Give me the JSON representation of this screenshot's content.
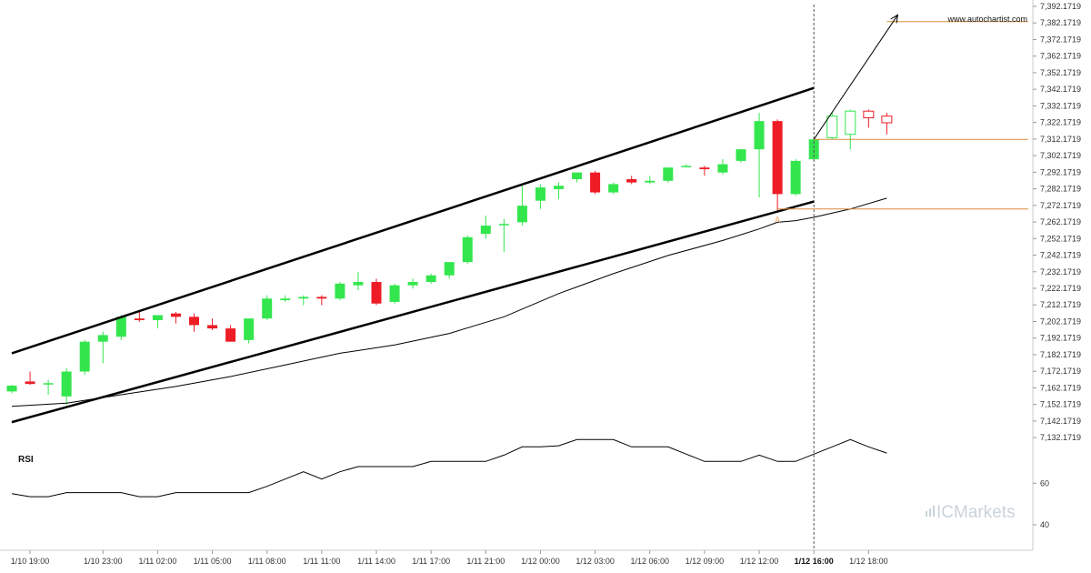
{
  "colors": {
    "bull": "#33e64d",
    "bear": "#ee1c25",
    "channel": "#000000",
    "ma": "#000000",
    "level": "#d98b3a",
    "marker": "#f4a460",
    "grid": "#cccccc",
    "brand": "#c9d3d9"
  },
  "watermark": {
    "site": "www.autochartist.com",
    "brand_prefix": "IC",
    "brand_name": "Markets"
  },
  "rsi_panel": {
    "title": "RSI"
  },
  "pattern_marker": {
    "label": "A"
  },
  "chart_data": {
    "type": "candlestick",
    "instrument_panel": {
      "ylim": [
        7127.1719,
        7392.1719
      ],
      "y_ticks": [
        "7,392.1719",
        "7,382.1719",
        "7,372.1719",
        "7,362.1719",
        "7,352.1719",
        "7,342.1719",
        "7,332.1719",
        "7,322.1719",
        "7,312.1719",
        "7,302.1719",
        "7,292.1719",
        "7,282.1719",
        "7,272.1719",
        "7,262.1719",
        "7,252.1719",
        "7,242.1719",
        "7,232.1719",
        "7,222.1719",
        "7,212.1719",
        "7,202.1719",
        "7,192.1719",
        "7,182.1719",
        "7,172.1719",
        "7,162.1719",
        "7,152.1719",
        "7,142.1719",
        "7,132.1719"
      ]
    },
    "x_ticks": [
      {
        "i": 1,
        "label": "1/10 19:00"
      },
      {
        "i": 5,
        "label": "1/10 23:00"
      },
      {
        "i": 8,
        "label": "1/11 02:00"
      },
      {
        "i": 11,
        "label": "1/11 05:00"
      },
      {
        "i": 14,
        "label": "1/11 08:00"
      },
      {
        "i": 17,
        "label": "1/11 11:00"
      },
      {
        "i": 20,
        "label": "1/11 14:00"
      },
      {
        "i": 23,
        "label": "1/11 17:00"
      },
      {
        "i": 26,
        "label": "1/11 21:00"
      },
      {
        "i": 29,
        "label": "1/12 00:00"
      },
      {
        "i": 32,
        "label": "1/12 03:00"
      },
      {
        "i": 35,
        "label": "1/12 06:00"
      },
      {
        "i": 38,
        "label": "1/12 09:00"
      },
      {
        "i": 41,
        "label": "1/12 12:00"
      },
      {
        "i": 44,
        "label": "1/12 16:00",
        "bold": true
      },
      {
        "i": 47,
        "label": "1/12 18:00"
      }
    ],
    "candles": [
      {
        "o": 7160.0,
        "h": 7164.0,
        "l": 7159.0,
        "c": 7163.5
      },
      {
        "o": 7166.0,
        "h": 7172.0,
        "l": 7164.0,
        "c": 7164.5
      },
      {
        "o": 7165.0,
        "h": 7167.0,
        "l": 7158.0,
        "c": 7165.0
      },
      {
        "o": 7157.0,
        "h": 7174.0,
        "l": 7152.0,
        "c": 7172.0
      },
      {
        "o": 7172.0,
        "h": 7191.0,
        "l": 7170.0,
        "c": 7190.0
      },
      {
        "o": 7190.0,
        "h": 7196.0,
        "l": 7177.0,
        "c": 7194.0
      },
      {
        "o": 7193.0,
        "h": 7206.0,
        "l": 7191.0,
        "c": 7205.0
      },
      {
        "o": 7204.0,
        "h": 7208.0,
        "l": 7202.0,
        "c": 7203.0
      },
      {
        "o": 7203.0,
        "h": 7206.0,
        "l": 7198.0,
        "c": 7206.0
      },
      {
        "o": 7207.0,
        "h": 7208.0,
        "l": 7201.0,
        "c": 7205.0
      },
      {
        "o": 7205.0,
        "h": 7207.0,
        "l": 7196.0,
        "c": 7200.0
      },
      {
        "o": 7200.0,
        "h": 7204.0,
        "l": 7197.0,
        "c": 7198.0
      },
      {
        "o": 7198.0,
        "h": 7200.0,
        "l": 7190.0,
        "c": 7190.0
      },
      {
        "o": 7191.0,
        "h": 7204.0,
        "l": 7189.0,
        "c": 7204.0
      },
      {
        "o": 7204.0,
        "h": 7218.0,
        "l": 7203.0,
        "c": 7216.0
      },
      {
        "o": 7215.0,
        "h": 7218.0,
        "l": 7214.0,
        "c": 7216.0
      },
      {
        "o": 7216.0,
        "h": 7218.0,
        "l": 7212.0,
        "c": 7217.0
      },
      {
        "o": 7217.0,
        "h": 7218.0,
        "l": 7212.0,
        "c": 7216.0
      },
      {
        "o": 7216.0,
        "h": 7226.0,
        "l": 7215.0,
        "c": 7225.0
      },
      {
        "o": 7224.0,
        "h": 7232.0,
        "l": 7221.0,
        "c": 7226.0
      },
      {
        "o": 7226.0,
        "h": 7228.0,
        "l": 7212.0,
        "c": 7213.0
      },
      {
        "o": 7214.0,
        "h": 7225.0,
        "l": 7213.0,
        "c": 7224.0
      },
      {
        "o": 7224.0,
        "h": 7228.0,
        "l": 7222.0,
        "c": 7226.0
      },
      {
        "o": 7226.0,
        "h": 7231.0,
        "l": 7225.0,
        "c": 7230.0
      },
      {
        "o": 7230.0,
        "h": 7238.0,
        "l": 7228.0,
        "c": 7238.0
      },
      {
        "o": 7238.0,
        "h": 7254.0,
        "l": 7237.0,
        "c": 7253.0
      },
      {
        "o": 7255.0,
        "h": 7266.0,
        "l": 7252.0,
        "c": 7260.0
      },
      {
        "o": 7261.0,
        "h": 7264.0,
        "l": 7244.0,
        "c": 7261.0
      },
      {
        "o": 7262.0,
        "h": 7284.0,
        "l": 7260.0,
        "c": 7272.0
      },
      {
        "o": 7275.0,
        "h": 7285.0,
        "l": 7270.0,
        "c": 7283.0
      },
      {
        "o": 7282.0,
        "h": 7286.0,
        "l": 7276.0,
        "c": 7284.0
      },
      {
        "o": 7288.0,
        "h": 7292.0,
        "l": 7286.0,
        "c": 7292.0
      },
      {
        "o": 7292.0,
        "h": 7293.0,
        "l": 7279.0,
        "c": 7280.0
      },
      {
        "o": 7280.0,
        "h": 7286.0,
        "l": 7279.0,
        "c": 7285.0
      },
      {
        "o": 7288.0,
        "h": 7290.0,
        "l": 7285.0,
        "c": 7286.0
      },
      {
        "o": 7286.0,
        "h": 7290.0,
        "l": 7285.0,
        "c": 7287.0
      },
      {
        "o": 7287.0,
        "h": 7295.0,
        "l": 7286.0,
        "c": 7295.0
      },
      {
        "o": 7296.0,
        "h": 7297.0,
        "l": 7295.0,
        "c": 7296.0
      },
      {
        "o": 7295.0,
        "h": 7296.0,
        "l": 7290.0,
        "c": 7294.0
      },
      {
        "o": 7292.0,
        "h": 7300.0,
        "l": 7291.0,
        "c": 7297.0
      },
      {
        "o": 7299.0,
        "h": 7306.0,
        "l": 7298.0,
        "c": 7306.0
      },
      {
        "o": 7306.0,
        "h": 7328.0,
        "l": 7277.0,
        "c": 7323.0
      },
      {
        "o": 7323.0,
        "h": 7324.0,
        "l": 7268.0,
        "c": 7279.0
      },
      {
        "o": 7279.0,
        "h": 7300.0,
        "l": 7278.0,
        "c": 7299.0
      },
      {
        "o": 7300.0,
        "h": 7313.0,
        "l": 7299.0,
        "c": 7312.0
      },
      {
        "o": 7313.0,
        "h": 7328.0,
        "l": 7312.0,
        "c": 7326.0,
        "hollow": true
      },
      {
        "o": 7315.0,
        "h": 7330.0,
        "l": 7306.0,
        "c": 7329.0,
        "hollow": true
      },
      {
        "o": 7329.0,
        "h": 7330.0,
        "l": 7319.0,
        "c": 7325.0,
        "hollow": true
      },
      {
        "o": 7326.0,
        "h": 7328.0,
        "l": 7315.0,
        "c": 7322.0,
        "hollow": true
      }
    ],
    "moving_average": [
      [
        0,
        7151.0
      ],
      [
        3,
        7153.0
      ],
      [
        6,
        7158.0
      ],
      [
        9,
        7163.0
      ],
      [
        12,
        7169.0
      ],
      [
        15,
        7176.0
      ],
      [
        18,
        7183.0
      ],
      [
        21,
        7188.0
      ],
      [
        24,
        7195.0
      ],
      [
        27,
        7205.0
      ],
      [
        30,
        7219.0
      ],
      [
        33,
        7231.0
      ],
      [
        36,
        7242.0
      ],
      [
        39,
        7251.0
      ],
      [
        41,
        7258.0
      ],
      [
        42,
        7262.0
      ],
      [
        43,
        7263.0
      ],
      [
        44,
        7265.0
      ],
      [
        46,
        7270.0
      ],
      [
        48,
        7276.5
      ]
    ],
    "channel_lines": [
      {
        "name": "upper",
        "from": [
          0,
          7183.0
        ],
        "to": [
          44,
          7343.0
        ]
      },
      {
        "name": "lower",
        "from": [
          0,
          7141.5
        ],
        "to": [
          44,
          7274.5
        ]
      }
    ],
    "forecast_arrow": {
      "from": [
        44,
        7312.0
      ],
      "to": [
        48.6,
        7387.0
      ]
    },
    "levels": [
      {
        "from": 48,
        "value": 7383.0
      },
      {
        "from": 44,
        "value": 7312.0
      },
      {
        "from": 42,
        "value": 7270.0
      }
    ],
    "marker_index": 42,
    "vline_index": 44,
    "rsi": {
      "ticks": [
        60,
        40
      ],
      "range_per_px": 0.4375,
      "values": [
        [
          0,
          55.0
        ],
        [
          1,
          53.5
        ],
        [
          2,
          53.5
        ],
        [
          3,
          55.5
        ],
        [
          4,
          55.5
        ],
        [
          5,
          55.5
        ],
        [
          6,
          55.5
        ],
        [
          7,
          53.5
        ],
        [
          8,
          53.5
        ],
        [
          9,
          55.5
        ],
        [
          10,
          55.5
        ],
        [
          11,
          55.5
        ],
        [
          12,
          55.5
        ],
        [
          13,
          55.5
        ],
        [
          14,
          58.5
        ],
        [
          15,
          62.0
        ],
        [
          16,
          65.5
        ],
        [
          17,
          62.0
        ],
        [
          18,
          65.5
        ],
        [
          19,
          68.0
        ],
        [
          20,
          68.0
        ],
        [
          21,
          68.0
        ],
        [
          22,
          68.0
        ],
        [
          23,
          70.5
        ],
        [
          24,
          70.5
        ],
        [
          25,
          70.5
        ],
        [
          26,
          70.5
        ],
        [
          27,
          73.5
        ],
        [
          28,
          77.5
        ],
        [
          29,
          77.5
        ],
        [
          30,
          78.0
        ],
        [
          31,
          81.0
        ],
        [
          32,
          81.0
        ],
        [
          33,
          81.0
        ],
        [
          34,
          77.5
        ],
        [
          35,
          77.5
        ],
        [
          36,
          77.5
        ],
        [
          37,
          74.0
        ],
        [
          38,
          70.5
        ],
        [
          39,
          70.5
        ],
        [
          40,
          70.5
        ],
        [
          41,
          73.5
        ],
        [
          42,
          70.5
        ],
        [
          43,
          70.5
        ],
        [
          44,
          74.0
        ],
        [
          45,
          77.5
        ],
        [
          46,
          81.0
        ],
        [
          47,
          77.5
        ],
        [
          48,
          74.5
        ]
      ]
    }
  }
}
